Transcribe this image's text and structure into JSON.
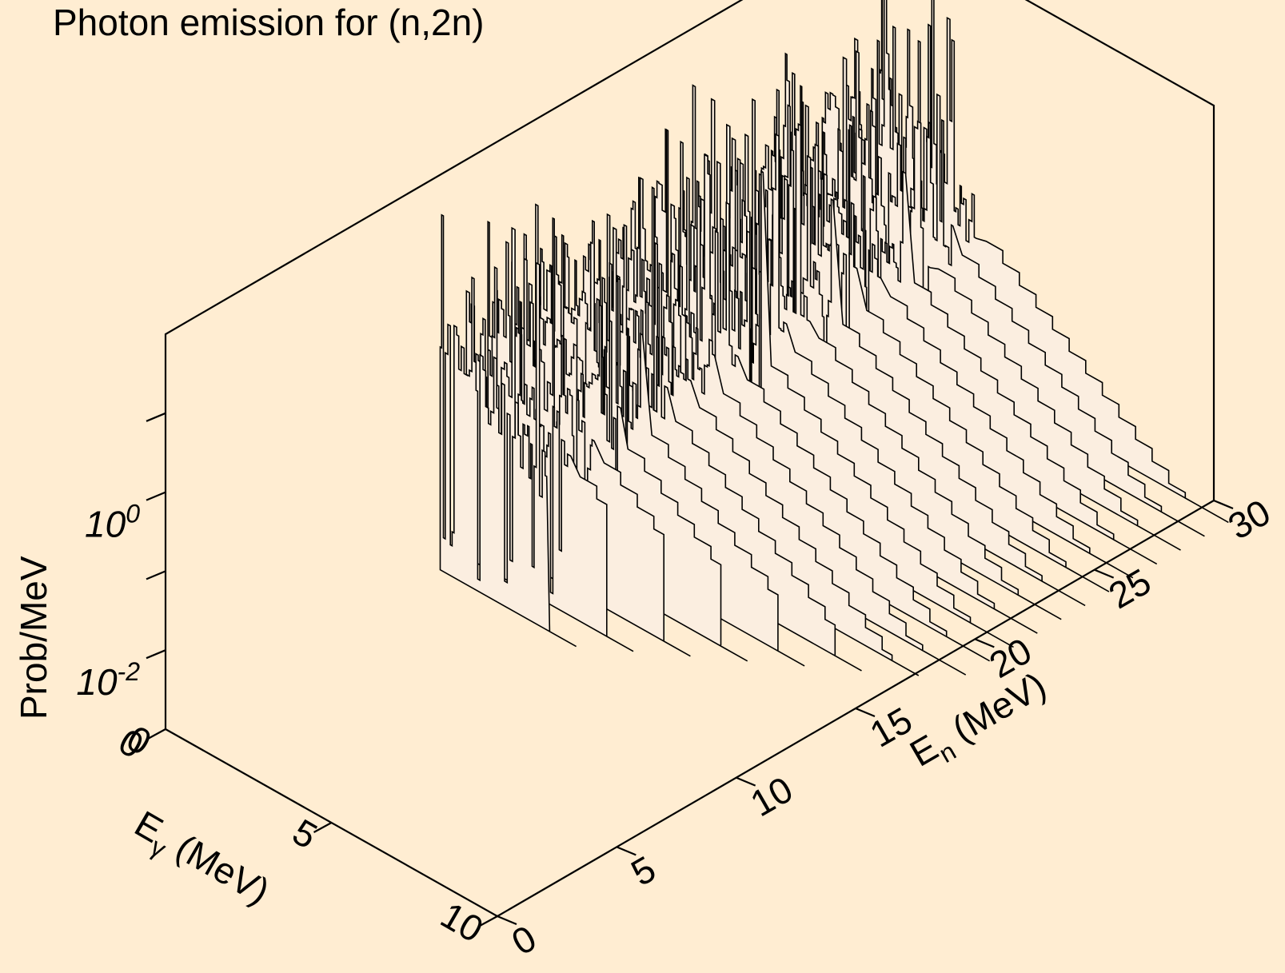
{
  "chart_data": {
    "type": "waterfall-3d",
    "title": "Photon emission for (n,2n)",
    "x_axis": {
      "label_main": "E",
      "label_sub": "γ",
      "label_unit": " (MeV)",
      "range": [
        0,
        10
      ],
      "ticks": [
        "0",
        "5",
        "10"
      ]
    },
    "y_axis": {
      "label_main": "E",
      "label_sub": "n",
      "label_unit": " (MeV)",
      "range": [
        0,
        30
      ],
      "ticks": [
        "0",
        "5",
        "10",
        "15",
        "20",
        "25",
        "30"
      ]
    },
    "z_axis": {
      "label": "Prob/MeV",
      "scale": "log",
      "range_exp": [
        -3,
        2
      ],
      "tick_labels": [
        {
          "base": "10",
          "exp": "-2",
          "value_exp": -2
        },
        {
          "base": "10",
          "exp": "0",
          "value_exp": 0
        }
      ],
      "minor_tick_exps": [
        -1,
        1
      ]
    },
    "incident_energies": [
      11.5,
      12.5,
      13.5,
      14.5,
      15.5,
      16.5,
      17.5,
      18.5,
      19.5,
      20.5,
      21.5,
      22.5,
      23.5,
      24.5,
      25.5,
      26.5,
      27.5,
      28.5,
      29.5
    ],
    "spectrum_model": {
      "eg_bin_width": 0.5,
      "continuum_log10_at_zero": 0.2,
      "continuum_log10_slope_per_MeV": -0.32,
      "max_eg_offset": 8.2,
      "discrete_line_region_MeV": [
        0,
        3.2
      ],
      "discrete_line_peak_log10": 1.6
    }
  }
}
